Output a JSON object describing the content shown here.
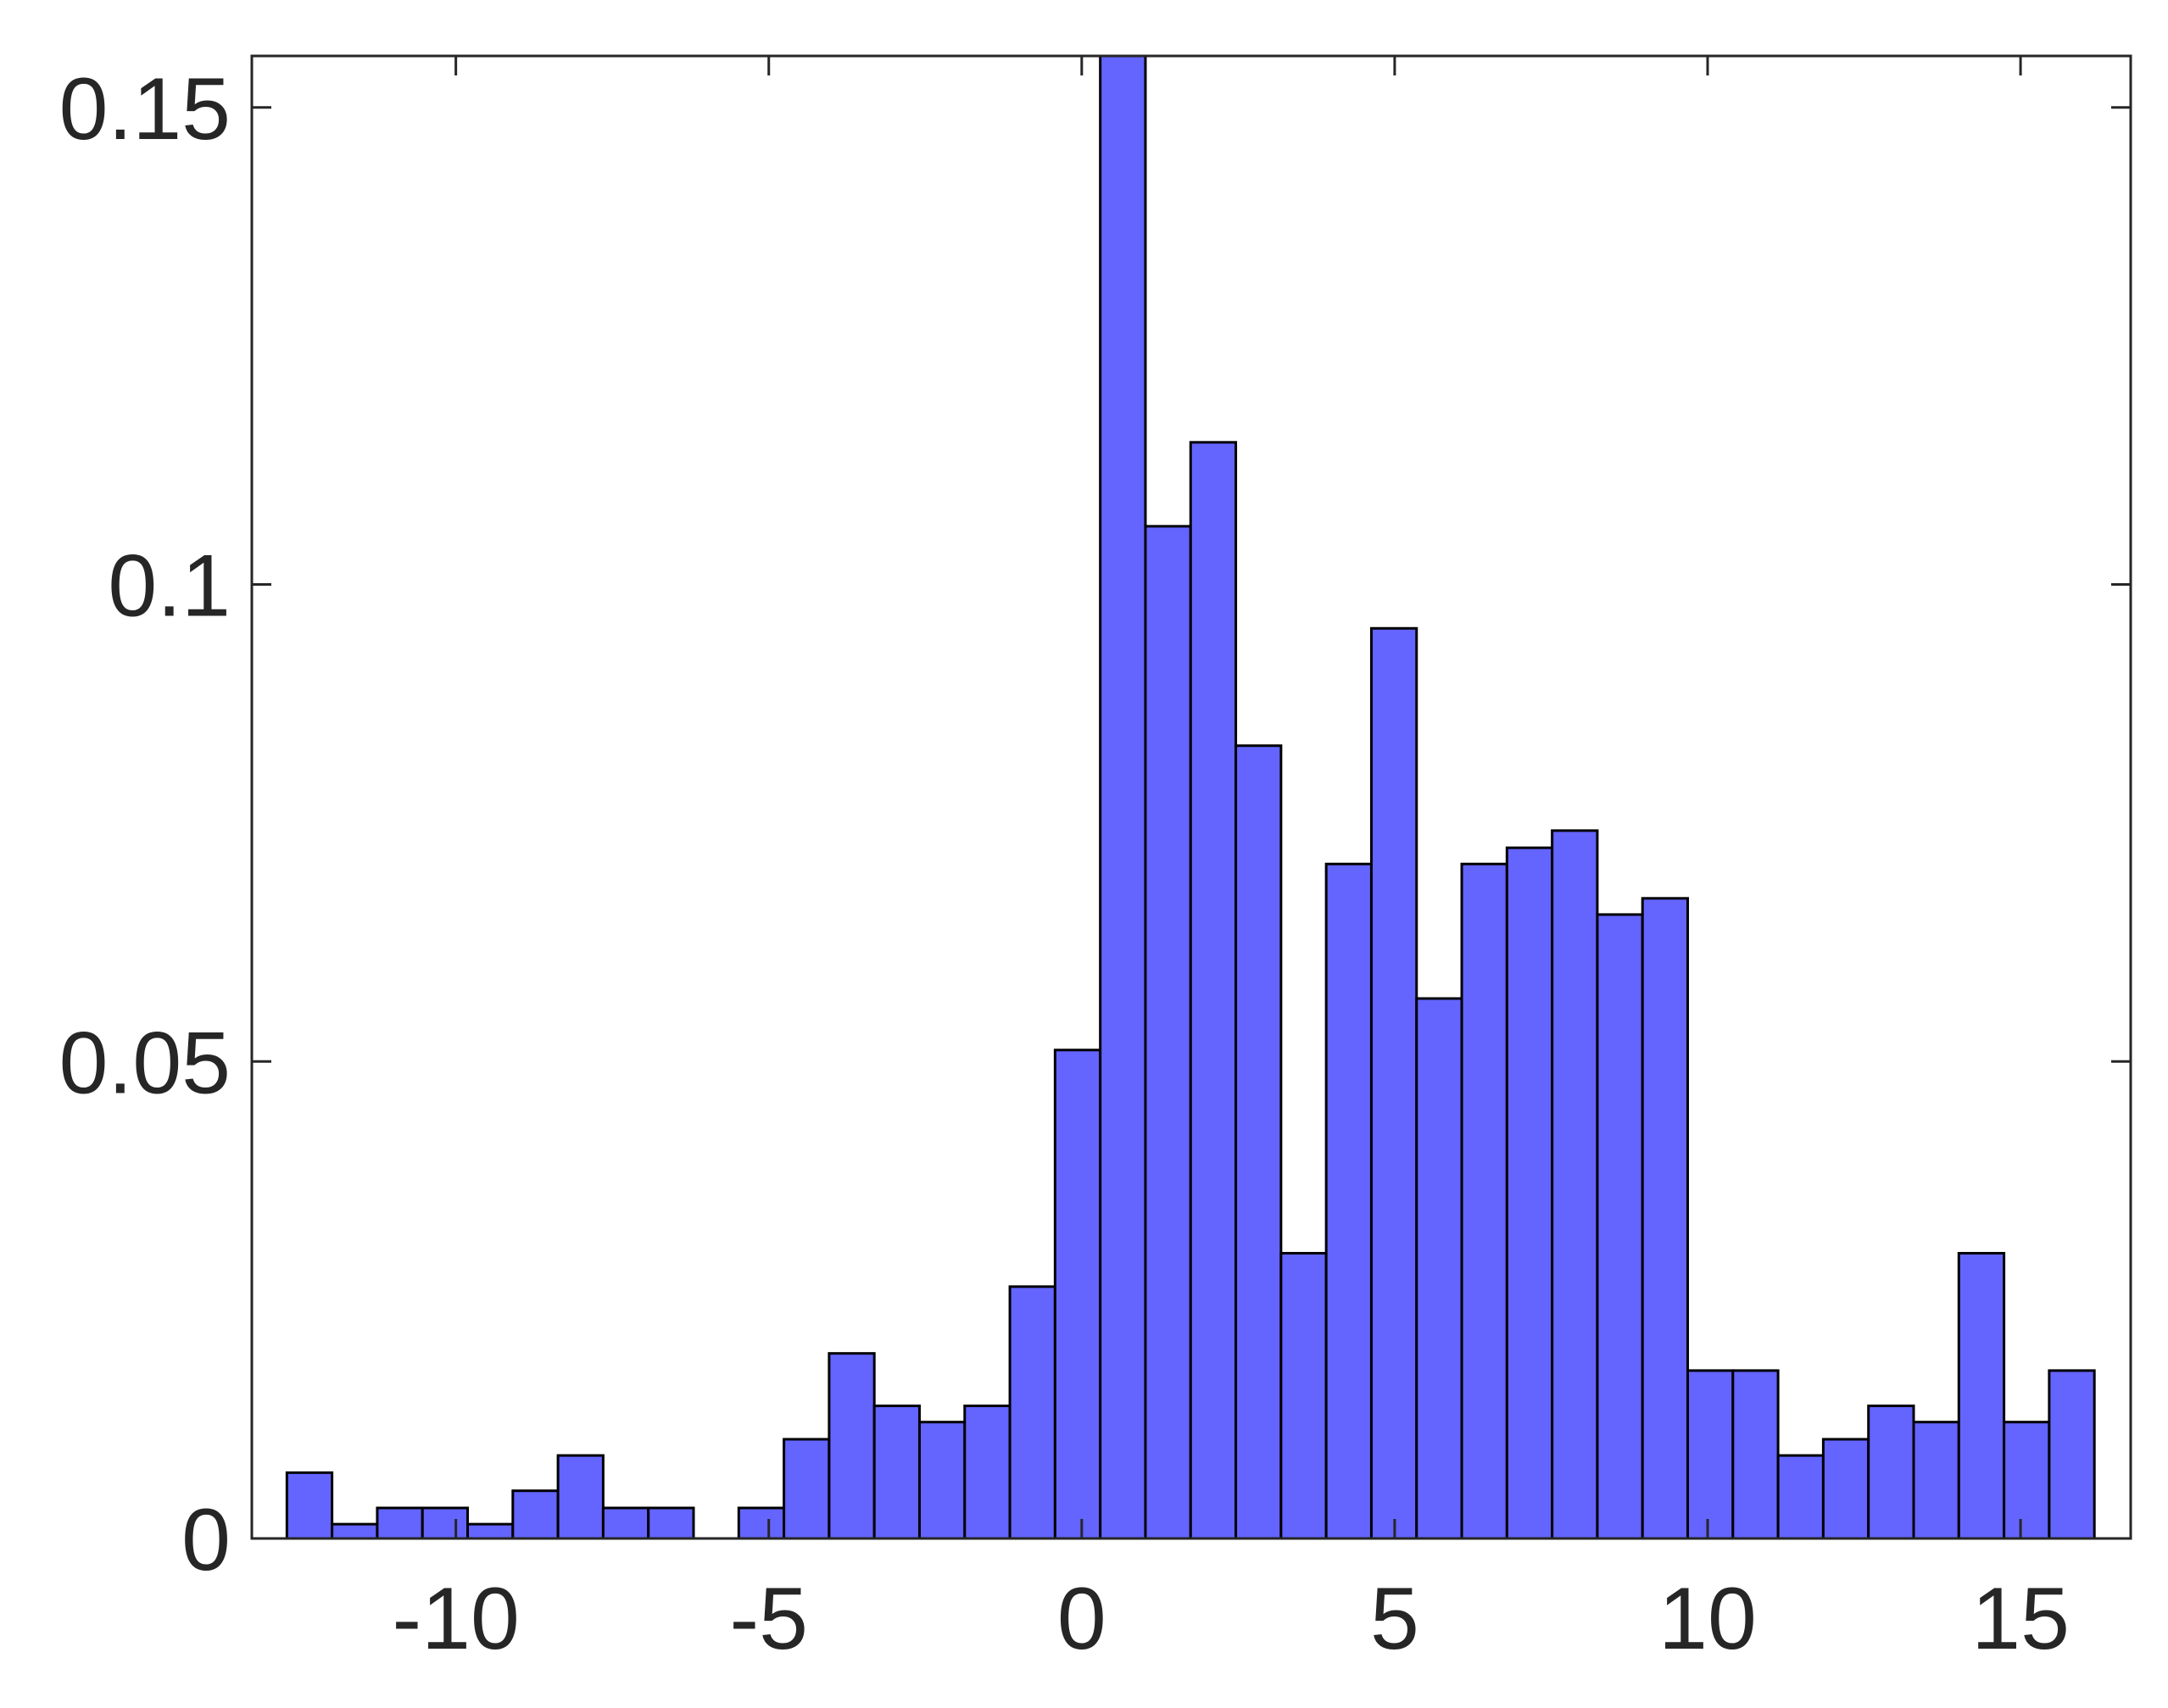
{
  "chart_data": {
    "type": "histogram",
    "bins": [
      -12.7,
      -11.978,
      -11.256,
      -10.534,
      -9.812,
      -9.09,
      -8.368,
      -7.646,
      -6.924,
      -6.202,
      -5.48,
      -4.758,
      -4.036,
      -3.314,
      -2.592,
      -1.87,
      -1.148,
      -0.426,
      0.296,
      1.018,
      1.74,
      2.462,
      3.184,
      3.906,
      4.628,
      5.35,
      6.072,
      6.794,
      7.516,
      8.238,
      8.96,
      9.682,
      10.404,
      11.126,
      11.848,
      12.57,
      13.292,
      14.014,
      14.736,
      15.458,
      16.18
    ],
    "values": [
      0.0069,
      0.0015,
      0.0032,
      0.0032,
      0.0015,
      0.005,
      0.0087,
      0.0032,
      0.0032,
      0,
      0.0032,
      0.0104,
      0.0194,
      0.0139,
      0.0122,
      0.0139,
      0.0264,
      0.0512,
      0.156,
      0.1061,
      0.1149,
      0.0831,
      0.0299,
      0.0707,
      0.0954,
      0.0566,
      0.0707,
      0.0724,
      0.0742,
      0.0654,
      0.0671,
      0.0176,
      0.0176,
      0.0087,
      0.0104,
      0.0139,
      0.0122,
      0.0299,
      0.0122,
      0.0176
    ],
    "color": "#6464ff",
    "xlim": [
      -13.26,
      16.76
    ],
    "xticks": [
      -10,
      -5,
      0,
      5,
      10,
      15
    ],
    "ylim": [
      0,
      0.1554
    ],
    "yticks": [
      0,
      0.05,
      0.1,
      0.15
    ],
    "grid": false
  }
}
